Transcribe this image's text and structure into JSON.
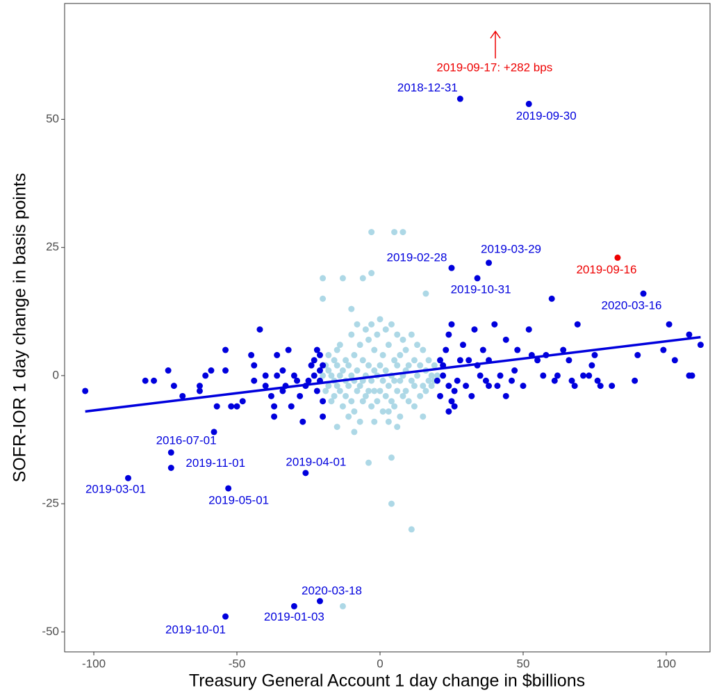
{
  "chart_data": {
    "type": "scatter",
    "x_label": "Treasury General Account 1 day change in $billions",
    "y_label": "SOFR-IOR 1 day change in basis points",
    "xlim": [
      -110.2,
      115.3
    ],
    "ylim": [
      -53.9,
      72.6
    ],
    "xticks": [
      -100,
      -50,
      0,
      50,
      100
    ],
    "yticks": [
      -50,
      -25,
      0,
      25,
      50
    ],
    "grid": false,
    "series": [
      {
        "color": "#add8e6",
        "x": [
          -19,
          -19,
          -18,
          -18,
          -18,
          -17,
          -17,
          -16,
          -16,
          -16,
          -15,
          -15,
          -15,
          -14,
          -14,
          -14,
          -13,
          -13,
          -12,
          -12,
          -12,
          -11,
          -11,
          -10,
          -10,
          -10,
          -9,
          -9,
          -9,
          -8,
          -8,
          -8,
          -7,
          -7,
          -7,
          -6,
          -6,
          -6,
          -5,
          -5,
          -5,
          -4,
          -4,
          -4,
          -3,
          -3,
          -3,
          -2,
          -2,
          -2,
          -1,
          -1,
          -1,
          0,
          0,
          0,
          1,
          1,
          1,
          2,
          2,
          2,
          3,
          3,
          3,
          4,
          4,
          4,
          5,
          5,
          5,
          6,
          6,
          6,
          7,
          7,
          7,
          8,
          8,
          8,
          9,
          9,
          9,
          10,
          10,
          11,
          11,
          12,
          12,
          13,
          13,
          14,
          14,
          15,
          15,
          16,
          16,
          17,
          17,
          18,
          18,
          19,
          19,
          -20,
          20,
          -3,
          5,
          8,
          -13,
          -20,
          -20,
          -10,
          -6,
          -3,
          16,
          -4,
          4,
          4,
          11,
          -13,
          -9,
          -15,
          15,
          -2,
          3,
          6,
          -11,
          12
        ],
        "y": [
          2,
          -3,
          1,
          -2,
          4,
          0,
          -5,
          3,
          -1,
          -4,
          2,
          -2,
          5,
          0,
          -3,
          6,
          1,
          -6,
          3,
          -1,
          -4,
          2,
          -2,
          8,
          0,
          -5,
          4,
          -1,
          -7,
          10,
          1,
          -3,
          6,
          -2,
          -9,
          3,
          -1,
          -5,
          9,
          0,
          -4,
          7,
          2,
          -3,
          10,
          -1,
          -6,
          5,
          1,
          -3,
          8,
          0,
          -5,
          11,
          2,
          -3,
          4,
          -1,
          -7,
          9,
          1,
          -4,
          6,
          -2,
          -9,
          10,
          0,
          -5,
          3,
          -1,
          -6,
          8,
          2,
          -3,
          4,
          -1,
          -8,
          7,
          0,
          -4,
          5,
          1,
          -3,
          2,
          -5,
          8,
          -1,
          3,
          -2,
          6,
          0,
          -4,
          2,
          5,
          -2,
          1,
          -3,
          3,
          -1,
          0,
          -2,
          2,
          -1,
          0,
          0,
          28,
          28,
          28,
          19,
          15,
          19,
          13,
          19,
          20,
          16,
          -17,
          -16,
          -25,
          -30,
          -45,
          -11,
          -10,
          -8,
          -9,
          -7,
          -10,
          -8,
          -6
        ]
      },
      {
        "color": "#0000dd",
        "x": [
          -103,
          -82,
          -79,
          -74,
          -72,
          -69,
          -63,
          -63,
          -61,
          -59,
          -57,
          -54,
          -54,
          -52,
          -50,
          -48,
          -45,
          -44,
          -42,
          -40,
          -38,
          -37,
          -37,
          -36,
          -34,
          -33,
          -32,
          -30,
          -29,
          -28,
          -27,
          -26,
          -25,
          -24,
          -23,
          -22,
          -21,
          -21,
          -20,
          -20,
          -22,
          -23,
          -21,
          -20,
          -44,
          -40,
          -36,
          -34,
          -31,
          20,
          21,
          21,
          22,
          22,
          23,
          24,
          24,
          25,
          25,
          26,
          27,
          28,
          29,
          30,
          31,
          32,
          33,
          34,
          35,
          36,
          37,
          38,
          40,
          41,
          42,
          44,
          46,
          47,
          48,
          50,
          52,
          53,
          55,
          57,
          58,
          60,
          61,
          62,
          64,
          66,
          67,
          68,
          69,
          71,
          73,
          74,
          75,
          76,
          77,
          81,
          89,
          90,
          99,
          101,
          103,
          108,
          108,
          109,
          112,
          38,
          44,
          26,
          24,
          28,
          52,
          25,
          38,
          34,
          92,
          -58,
          -73,
          -73,
          -26,
          -88,
          -53,
          -21,
          -30,
          -54
        ],
        "y": [
          -3,
          -1,
          -1,
          1,
          -2,
          -4,
          -3,
          -2,
          0,
          1,
          -6,
          1,
          5,
          -6,
          -6,
          -5,
          4,
          -1,
          9,
          0,
          -4,
          -6,
          -8,
          0,
          -3,
          -2,
          5,
          0,
          -1,
          -4,
          -9,
          -2,
          -1,
          2,
          0,
          -3,
          4,
          1,
          -5,
          -8,
          5,
          3,
          -1,
          2,
          2,
          -2,
          4,
          1,
          -6,
          -1,
          3,
          -4,
          0,
          2,
          5,
          -2,
          8,
          10,
          -5,
          -3,
          -1,
          3,
          6,
          -2,
          3,
          -4,
          9,
          2,
          0,
          5,
          -1,
          3,
          10,
          -2,
          0,
          7,
          -1,
          1,
          5,
          -2,
          9,
          4,
          3,
          0,
          4,
          15,
          -1,
          0,
          5,
          3,
          -1,
          -2,
          10,
          0,
          0,
          2,
          4,
          -1,
          -2,
          -2,
          -1,
          4,
          5,
          10,
          3,
          8,
          0,
          0,
          6,
          -2,
          -4,
          -6,
          -7,
          54,
          53,
          21,
          22,
          19,
          16,
          -11,
          -15,
          -18,
          -19,
          -20,
          -22,
          -44,
          -45,
          -47
        ]
      },
      {
        "color": "#ee0000",
        "x": [
          83
        ],
        "y": [
          23
        ]
      }
    ],
    "trend": {
      "color": "#0000dd",
      "x": [
        -103,
        112
      ],
      "y": [
        -7,
        7.5
      ]
    },
    "annotations": [
      {
        "text": "2018-12-31",
        "x": 28,
        "y": 54,
        "color": "#0000dd"
      },
      {
        "text": "2019-09-30",
        "x": 52,
        "y": 53,
        "color": "#0000dd"
      },
      {
        "text": "2019-02-28",
        "x": 25,
        "y": 21,
        "color": "#0000dd"
      },
      {
        "text": "2019-03-29",
        "x": 38,
        "y": 22,
        "color": "#0000dd"
      },
      {
        "text": "2019-10-31",
        "x": 34,
        "y": 19,
        "color": "#0000dd"
      },
      {
        "text": "2019-09-16",
        "x": 83,
        "y": 23,
        "color": "#ee0000"
      },
      {
        "text": "2020-03-16",
        "x": 92,
        "y": 16,
        "color": "#0000dd"
      },
      {
        "text": "2016-07-01",
        "x": -58,
        "y": -11,
        "color": "#0000dd"
      },
      {
        "text": "2019-11-01",
        "x": -73,
        "y": -18,
        "color": "#0000dd"
      },
      {
        "text": "2019-04-01",
        "x": -26,
        "y": -19,
        "color": "#0000dd"
      },
      {
        "text": "2019-03-01",
        "x": -88,
        "y": -20,
        "color": "#0000dd"
      },
      {
        "text": "2019-05-01",
        "x": -53,
        "y": -22,
        "color": "#0000dd"
      },
      {
        "text": "2020-03-18",
        "x": -21,
        "y": -44,
        "color": "#0000dd"
      },
      {
        "text": "2019-01-03",
        "x": -30,
        "y": -45,
        "color": "#0000dd"
      },
      {
        "text": "2019-10-01",
        "x": -54,
        "y": -47,
        "color": "#0000dd"
      },
      {
        "text": "2019-09-17: +282 bps",
        "x": 40,
        "y": 60,
        "color": "#ee0000"
      }
    ]
  }
}
